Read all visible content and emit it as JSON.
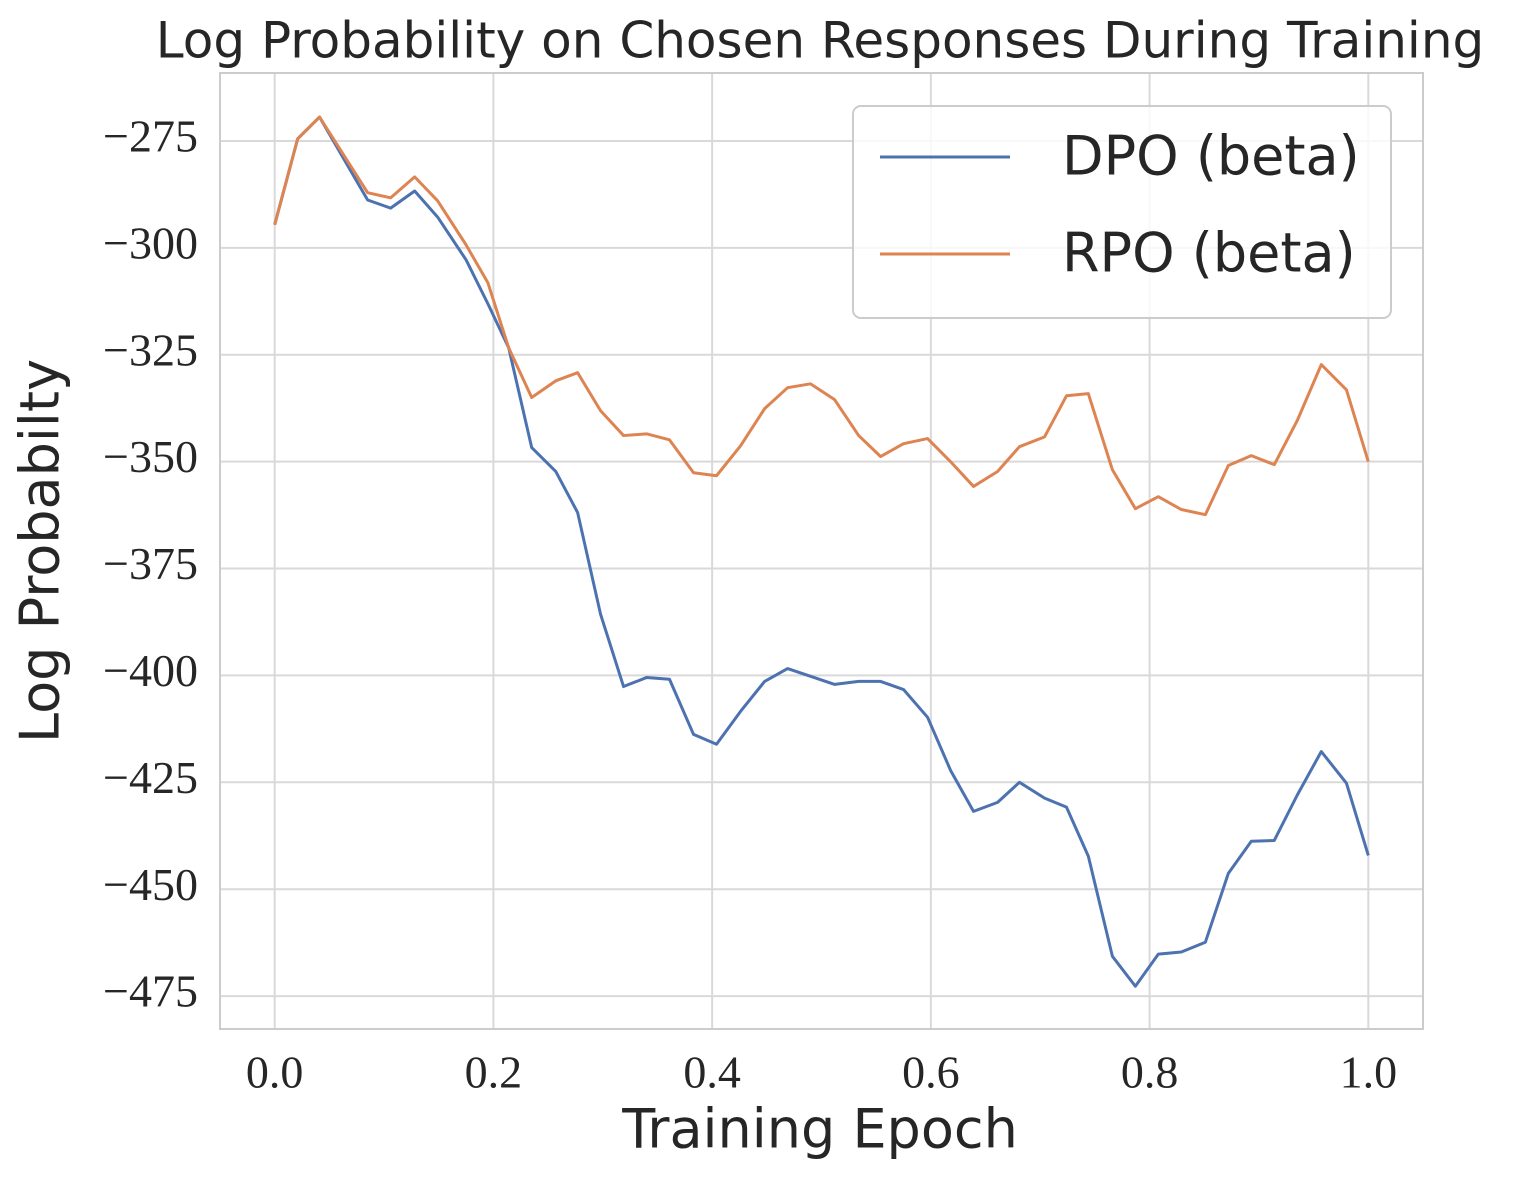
{
  "chart_data": {
    "type": "line",
    "title": "Log Probability on Chosen Responses During Training",
    "x_label": "Training Epoch",
    "y_label": "Log Probabilty",
    "x": [
      0,
      0.021,
      0.041,
      0.085,
      0.106,
      0.128,
      0.149,
      0.175,
      0.195,
      0.214,
      0.235,
      0.257,
      0.277,
      0.298,
      0.319,
      0.34,
      0.361,
      0.383,
      0.404,
      0.426,
      0.448,
      0.469,
      0.49,
      0.512,
      0.534,
      0.554,
      0.575,
      0.597,
      0.618,
      0.639,
      0.661,
      0.681,
      0.704,
      0.724,
      0.744,
      0.766,
      0.787,
      0.808,
      0.829,
      0.851,
      0.872,
      0.893,
      0.914,
      0.935,
      0.957,
      0.98,
      1.0
    ],
    "series": [
      {
        "name": "DPO (beta)",
        "color": "#4c72b0",
        "values": [
          -294.6,
          -274.5,
          -269.4,
          -288.8,
          -290.7,
          -286.7,
          -292.8,
          -302.8,
          -313.1,
          -323.4,
          -346.7,
          -352.3,
          -361.9,
          -385.7,
          -402.6,
          -400.5,
          -400.9,
          -413.8,
          -416.1,
          -408.4,
          -401.4,
          -398.4,
          -400.2,
          -402.1,
          -401.4,
          -401.4,
          -403.3,
          -409.8,
          -422.2,
          -431.8,
          -429.7,
          -425.0,
          -428.7,
          -430.8,
          -442.3,
          -465.7,
          -472.7,
          -465.2,
          -464.7,
          -462.4,
          -446.3,
          -438.8,
          -438.6,
          -428.0,
          -417.8,
          -425.2,
          -442.1
        ]
      },
      {
        "name": "RPO (beta)",
        "color": "#dd8452",
        "values": [
          -294.6,
          -274.5,
          -269.4,
          -287.1,
          -288.3,
          -283.4,
          -289.0,
          -299.3,
          -308.2,
          -323.4,
          -335.0,
          -331.1,
          -329.2,
          -338.1,
          -343.9,
          -343.5,
          -344.9,
          -352.6,
          -353.3,
          -346.3,
          -337.6,
          -332.7,
          -331.8,
          -335.5,
          -343.9,
          -348.8,
          -345.8,
          -344.6,
          -350.0,
          -355.8,
          -352.3,
          -346.5,
          -344.2,
          -334.6,
          -334.1,
          -351.9,
          -361.0,
          -358.2,
          -361.2,
          -362.4,
          -350.9,
          -348.6,
          -350.7,
          -340.4,
          -327.3,
          -333.2,
          -350.0
        ]
      }
    ],
    "xlim": [
      -0.05,
      1.05
    ],
    "ylim": [
      -482.7,
      -259.1
    ],
    "xticks": [
      {
        "value": 0,
        "label": "0.0"
      },
      0.2,
      0.4,
      0.6,
      0.8,
      {
        "value": 1,
        "label": "1.0"
      }
    ],
    "yticks": [
      {
        "value": -275,
        "label": "−275"
      },
      {
        "value": -300,
        "label": "−300"
      },
      {
        "value": -325,
        "label": "−325"
      },
      {
        "value": -350,
        "label": "−350"
      },
      {
        "value": -375,
        "label": "−375"
      },
      {
        "value": -400,
        "label": "−400"
      },
      {
        "value": -425,
        "label": "−425"
      },
      {
        "value": -450,
        "label": "−450"
      },
      {
        "value": -475,
        "label": "−475"
      }
    ],
    "grid": true,
    "legend": "upper right"
  }
}
